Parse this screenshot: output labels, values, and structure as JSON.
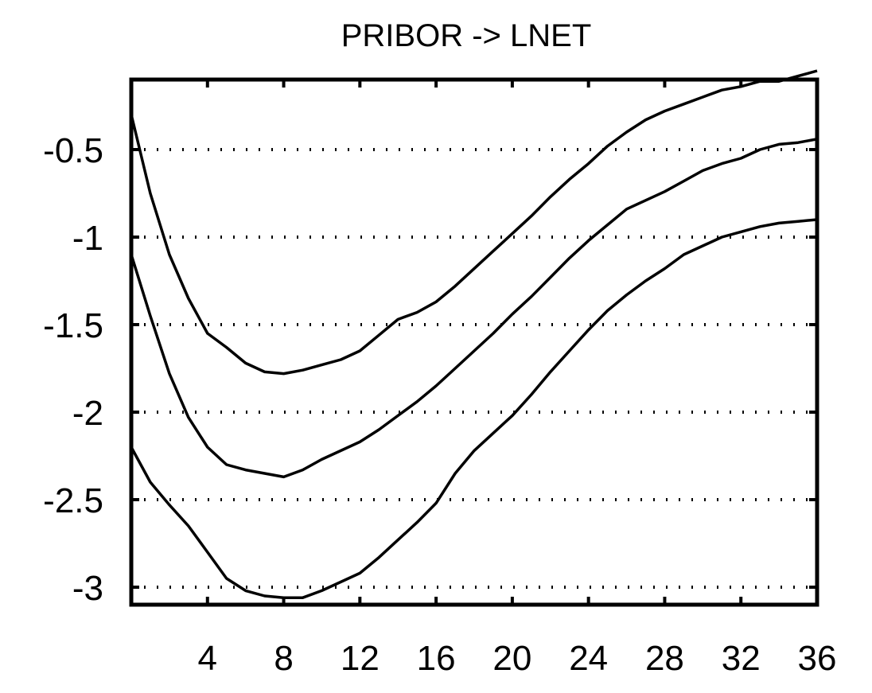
{
  "chart_data": {
    "type": "line",
    "title": "PRIBOR -> LNET",
    "xlim": [
      0,
      36
    ],
    "ylim": [
      -3.1,
      -0.1
    ],
    "x_ticks": [
      "4",
      "8",
      "12",
      "16",
      "20",
      "24",
      "28",
      "32",
      "36"
    ],
    "y_ticks": [
      "-0.5",
      "-1",
      "-1.5",
      "-2",
      "-2.5",
      "-3"
    ],
    "grid": "horizontal dotted",
    "series": [
      {
        "color": "#000000",
        "x": [
          0,
          1,
          2,
          3,
          4,
          5,
          6,
          7,
          8,
          9,
          10,
          11,
          12,
          13,
          14,
          15,
          16,
          17,
          18,
          19,
          20,
          21,
          22,
          23,
          24,
          25,
          26,
          27,
          28,
          29,
          30,
          31,
          32,
          33,
          34,
          35,
          36
        ],
        "values": [
          -0.3,
          -0.75,
          -1.1,
          -1.35,
          -1.55,
          -1.63,
          -1.72,
          -1.77,
          -1.78,
          -1.76,
          -1.73,
          -1.7,
          -1.65,
          -1.56,
          -1.47,
          -1.43,
          -1.37,
          -1.28,
          -1.18,
          -1.08,
          -0.98,
          -0.88,
          -0.77,
          -0.67,
          -0.58,
          -0.48,
          -0.4,
          -0.33,
          -0.28,
          -0.24,
          -0.2,
          -0.16,
          -0.14,
          -0.11,
          -0.11,
          -0.08,
          -0.05
        ]
      },
      {
        "color": "#000000",
        "x": [
          0,
          1,
          2,
          3,
          4,
          5,
          6,
          7,
          8,
          9,
          10,
          11,
          12,
          13,
          14,
          15,
          16,
          17,
          18,
          19,
          20,
          21,
          22,
          23,
          24,
          25,
          26,
          27,
          28,
          29,
          30,
          31,
          32,
          33,
          34,
          35,
          36
        ],
        "values": [
          -1.1,
          -1.45,
          -1.78,
          -2.03,
          -2.2,
          -2.3,
          -2.33,
          -2.35,
          -2.37,
          -2.33,
          -2.27,
          -2.22,
          -2.17,
          -2.1,
          -2.02,
          -1.94,
          -1.85,
          -1.75,
          -1.65,
          -1.55,
          -1.44,
          -1.34,
          -1.23,
          -1.12,
          -1.02,
          -0.93,
          -0.84,
          -0.79,
          -0.74,
          -0.68,
          -0.62,
          -0.58,
          -0.55,
          -0.5,
          -0.47,
          -0.46,
          -0.44
        ]
      },
      {
        "color": "#000000",
        "x": [
          0,
          1,
          2,
          3,
          4,
          5,
          6,
          7,
          8,
          9,
          10,
          11,
          12,
          13,
          14,
          15,
          16,
          17,
          18,
          19,
          20,
          21,
          22,
          23,
          24,
          25,
          26,
          27,
          28,
          29,
          30,
          31,
          32,
          33,
          34,
          35,
          36
        ],
        "values": [
          -2.2,
          -2.4,
          -2.53,
          -2.65,
          -2.8,
          -2.95,
          -3.02,
          -3.05,
          -3.06,
          -3.06,
          -3.02,
          -2.97,
          -2.92,
          -2.83,
          -2.73,
          -2.63,
          -2.52,
          -2.35,
          -2.22,
          -2.12,
          -2.02,
          -1.9,
          -1.77,
          -1.65,
          -1.53,
          -1.42,
          -1.33,
          -1.25,
          -1.18,
          -1.1,
          -1.05,
          -1.0,
          -0.97,
          -0.94,
          -0.92,
          -0.91,
          -0.9
        ]
      }
    ]
  }
}
